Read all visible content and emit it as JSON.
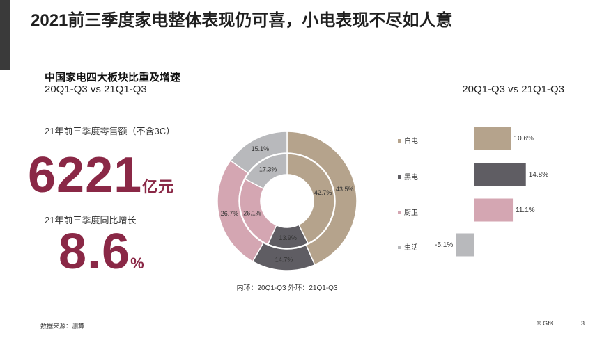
{
  "slide": {
    "title": "2021前三季度家电整体表现仍可喜，小电表现不尽如人意",
    "section_title": "中国家电四大板块比重及增速",
    "section_sub": "20Q1-Q3 vs 21Q1-Q3",
    "right_sub": "20Q1-Q3 vs 21Q1-Q3",
    "stat1_label": "21年前三季度零售额（不含3C）",
    "stat1_value": "6221",
    "stat1_unit": "亿元",
    "stat2_label": "21年前三季度同比增长",
    "stat2_value": "8.6",
    "stat2_unit": "%",
    "source": "数据来源：测算",
    "copyright": "© GfK",
    "page": "3"
  },
  "chart_data": [
    {
      "type": "pie",
      "variant": "double-donut",
      "caption": "内环：20Q1-Q3  外环：21Q1-Q3",
      "categories": [
        "白电",
        "黑电",
        "厨卫",
        "生活"
      ],
      "colors": [
        "#b5a38c",
        "#5f5d63",
        "#d4a6b2",
        "#b8b9bc"
      ],
      "series": [
        {
          "name": "20Q1-Q3",
          "ring": "inner",
          "values": [
            42.7,
            13.9,
            26.1,
            17.3
          ]
        },
        {
          "name": "21Q1-Q3",
          "ring": "outer",
          "values": [
            43.5,
            14.7,
            26.7,
            15.1
          ]
        }
      ]
    },
    {
      "type": "bar",
      "orientation": "horizontal",
      "categories": [
        "白电",
        "黑电",
        "厨卫",
        "生活"
      ],
      "values": [
        10.6,
        14.8,
        11.1,
        -5.1
      ],
      "value_labels": [
        "10.6%",
        "14.8%",
        "11.1%",
        "-5.1%"
      ],
      "colors": [
        "#b5a38c",
        "#5f5d63",
        "#d4a6b2",
        "#b8b9bc"
      ]
    }
  ]
}
